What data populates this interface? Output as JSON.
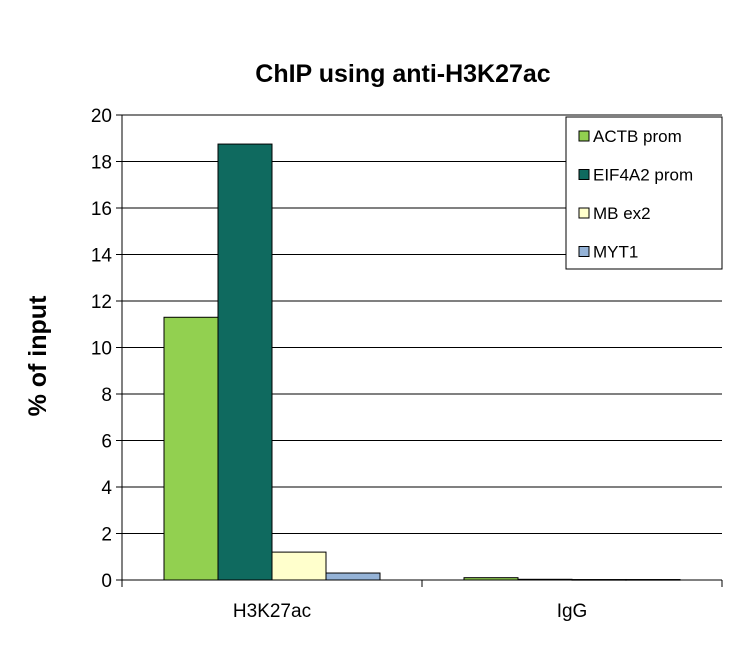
{
  "chart_data": {
    "type": "bar",
    "title": "ChIP using anti-H3K27ac",
    "xlabel": "",
    "ylabel": "% of input",
    "ylim": [
      0,
      20
    ],
    "yticks": [
      0,
      2,
      4,
      6,
      8,
      10,
      12,
      14,
      16,
      18,
      20
    ],
    "grid": true,
    "legend_position": "top-right",
    "categories": [
      "H3K27ac",
      "IgG"
    ],
    "series": [
      {
        "name": "ACTB prom",
        "color": "#92d050",
        "values": [
          11.3,
          0.1
        ]
      },
      {
        "name": "EIF4A2 prom",
        "color": "#0f6a5f",
        "values": [
          18.75,
          0.03
        ]
      },
      {
        "name": "MB ex2",
        "color": "#ffffcc",
        "values": [
          1.2,
          0.02
        ]
      },
      {
        "name": "MYT1",
        "color": "#95b3d7",
        "values": [
          0.3,
          0.02
        ]
      }
    ]
  }
}
